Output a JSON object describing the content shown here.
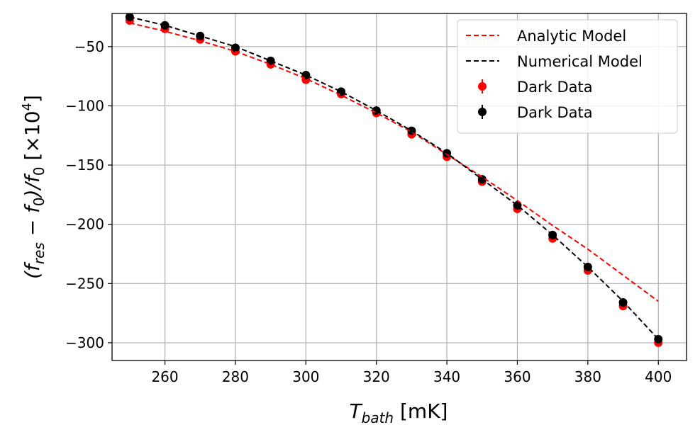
{
  "chart_data": {
    "type": "scatter",
    "title": "",
    "xlabel": {
      "main": "T",
      "sub": "bath",
      "unit": " [mK]"
    },
    "ylabel": {
      "open": "(f",
      "sub1": "res",
      "mid": " − f",
      "sub2": "0",
      "close": ")/f",
      "sub3": "0",
      "unit": " [×10",
      "exp": "4",
      "end": "]"
    },
    "xlim": [
      245,
      408
    ],
    "ylim": [
      -315,
      -22
    ],
    "xticks": [
      260,
      280,
      300,
      320,
      340,
      360,
      380,
      400
    ],
    "yticks": [
      -50,
      -100,
      -150,
      -200,
      -250,
      -300
    ],
    "ytick_labels": [
      "−50",
      "−100",
      "−150",
      "−200",
      "−250",
      "−300"
    ],
    "grid": true,
    "legend_position": "top-right",
    "series": [
      {
        "name": "Analytic Model",
        "kind": "line",
        "style": "dashed",
        "color": "#ff0000",
        "x": [
          250,
          260,
          270,
          280,
          290,
          300,
          310,
          320,
          330,
          340,
          350,
          360,
          370,
          380,
          390,
          400
        ],
        "y": [
          -30,
          -37,
          -45,
          -54,
          -65,
          -77,
          -91,
          -106,
          -122,
          -141,
          -160,
          -180,
          -201,
          -221,
          -243,
          -265
        ]
      },
      {
        "name": "Numerical Model",
        "kind": "line",
        "style": "dashed",
        "color": "#000000",
        "x": [
          250,
          260,
          270,
          280,
          290,
          300,
          310,
          320,
          330,
          340,
          350,
          360,
          370,
          380,
          390,
          400
        ],
        "y": [
          -25,
          -32,
          -41,
          -50,
          -62,
          -74,
          -88,
          -104,
          -121,
          -140,
          -162,
          -184,
          -209,
          -236,
          -265,
          -297
        ]
      },
      {
        "name": "Dark Data",
        "kind": "points",
        "color": "#ff0000",
        "x": [
          250,
          260,
          270,
          280,
          290,
          300,
          310,
          320,
          330,
          340,
          350,
          360,
          370,
          380,
          390,
          400
        ],
        "y": [
          -28,
          -35,
          -44,
          -54,
          -65,
          -78,
          -90,
          -106,
          -124,
          -143,
          -164,
          -187,
          -212,
          -239,
          -269,
          -300
        ]
      },
      {
        "name": "Dark Data",
        "kind": "points",
        "color": "#000000",
        "x": [
          250,
          260,
          270,
          280,
          290,
          300,
          310,
          320,
          330,
          340,
          350,
          360,
          370,
          380,
          390,
          400
        ],
        "y": [
          -25,
          -32,
          -41,
          -51,
          -62,
          -74,
          -88,
          -104,
          -121,
          -140,
          -162,
          -184,
          -209,
          -236,
          -266,
          -297
        ]
      }
    ]
  }
}
